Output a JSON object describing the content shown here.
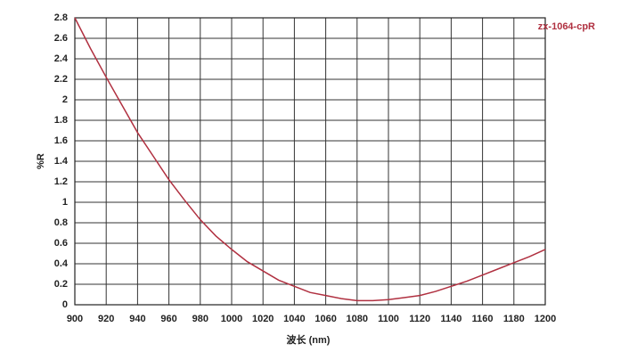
{
  "chart_data": {
    "type": "line",
    "xlabel": "波长 (nm)",
    "ylabel": "%R",
    "x": [
      900,
      910,
      920,
      930,
      940,
      950,
      960,
      970,
      980,
      990,
      1000,
      1010,
      1020,
      1030,
      1040,
      1050,
      1060,
      1070,
      1080,
      1090,
      1100,
      1110,
      1120,
      1130,
      1140,
      1150,
      1160,
      1170,
      1180,
      1190,
      1200
    ],
    "series": [
      {
        "name": "zx-1064-cpR",
        "color": "#b03040",
        "values": [
          2.8,
          2.5,
          2.22,
          1.95,
          1.68,
          1.45,
          1.22,
          1.02,
          0.83,
          0.67,
          0.54,
          0.42,
          0.33,
          0.24,
          0.18,
          0.12,
          0.09,
          0.06,
          0.04,
          0.04,
          0.05,
          0.07,
          0.09,
          0.13,
          0.18,
          0.23,
          0.29,
          0.35,
          0.41,
          0.47,
          0.54
        ]
      }
    ],
    "xlim": [
      900,
      1200
    ],
    "xticks": [
      900,
      920,
      940,
      960,
      980,
      1000,
      1020,
      1040,
      1060,
      1080,
      1100,
      1120,
      1140,
      1160,
      1180,
      1200
    ],
    "ylim": [
      0,
      2.8
    ],
    "yticks": [
      0,
      0.2,
      0.4,
      0.6,
      0.8,
      1,
      1.2,
      1.4,
      1.6,
      1.8,
      2,
      2.2,
      2.4,
      2.6,
      2.8
    ],
    "grid": true,
    "legend": "top-right"
  }
}
